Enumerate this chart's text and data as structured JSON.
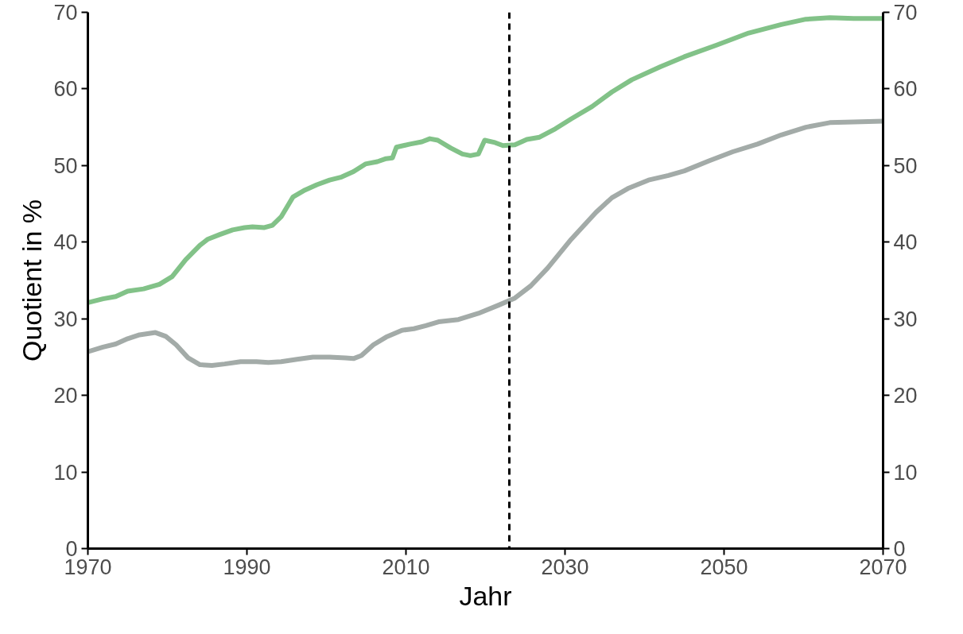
{
  "chart_data": {
    "type": "line",
    "xlabel": "Jahr",
    "ylabel": "Quotient in %",
    "xlim": [
      1970,
      2070
    ],
    "xticks": [
      1970,
      1990,
      2010,
      2030,
      2050,
      2070
    ],
    "ylim": [
      0,
      70
    ],
    "yticks": [
      0,
      10,
      20,
      30,
      40,
      50,
      60,
      70
    ],
    "y2lim": [
      0,
      70
    ],
    "y2ticks": [
      0,
      10,
      20,
      30,
      40,
      50,
      60,
      70
    ],
    "grid": false,
    "line_style": "solid",
    "marker": "none",
    "ref_lines": [
      {
        "axis": "x",
        "value": 2023,
        "color": "#000000",
        "line_style": "dashed"
      }
    ],
    "series": [
      {
        "color": "#82c288",
        "x": [
          1970,
          1971.9,
          1973.5,
          1975,
          1977,
          1979,
          1980.6,
          1982.3,
          1984.1,
          1985.1,
          1986.6,
          1988.2,
          1989.7,
          1990.7,
          1992.2,
          1993.2,
          1994.3,
          1995.8,
          1997.3,
          1998.8,
          2000.4,
          2001.9,
          2003.4,
          2004.9,
          2006.4,
          2007.5,
          2008.3,
          2008.8,
          2010.5,
          2012,
          2013,
          2014,
          2015.6,
          2017.1,
          2018.1,
          2019.1,
          2019.9,
          2021.2,
          2022.2,
          2023.7,
          2025.2,
          2026.8,
          2028.8,
          2030.8,
          2033.4,
          2035.9,
          2038.4,
          2042,
          2045,
          2049,
          2053.1,
          2057.2,
          2060.3,
          2063.3,
          2066.3,
          2070
        ],
        "values": [
          32.1,
          32.6,
          32.9,
          33.6,
          33.9,
          34.5,
          35.5,
          37.7,
          39.6,
          40.4,
          41.0,
          41.6,
          41.9,
          42.0,
          41.9,
          42.2,
          43.3,
          45.9,
          46.8,
          47.5,
          48.1,
          48.5,
          49.2,
          50.2,
          50.5,
          50.9,
          51.0,
          52.4,
          52.8,
          53.1,
          53.5,
          53.3,
          52.3,
          51.5,
          51.3,
          51.5,
          53.3,
          53.0,
          52.6,
          52.7,
          53.4,
          53.7,
          54.8,
          56.1,
          57.7,
          59.6,
          61.2,
          62.9,
          64.2,
          65.7,
          67.3,
          68.4,
          69.1,
          69.3,
          69.2,
          69.2
        ]
      },
      {
        "color": "#a3aba8",
        "x": [
          1970,
          1971.9,
          1973.5,
          1975,
          1976.5,
          1978.5,
          1979.8,
          1981.1,
          1982.6,
          1984.1,
          1985.6,
          1987.2,
          1989.2,
          1991.2,
          1992.7,
          1994.3,
          1996.3,
          1998.3,
          2000.4,
          2002.4,
          2003.4,
          2004.4,
          2005.9,
          2007.5,
          2009.5,
          2011,
          2012.5,
          2014.1,
          2016.6,
          2019.1,
          2021.7,
          2023.7,
          2025.7,
          2027.8,
          2030.8,
          2033.9,
          2035.9,
          2037.9,
          2040.5,
          2043,
          2045,
          2048.1,
          2051.1,
          2054.2,
          2057.2,
          2060.3,
          2063.3,
          2066.3,
          2070
        ],
        "values": [
          25.7,
          26.3,
          26.7,
          27.4,
          27.9,
          28.2,
          27.7,
          26.6,
          24.9,
          24.0,
          23.9,
          24.1,
          24.4,
          24.4,
          24.3,
          24.4,
          24.7,
          25.0,
          25.0,
          24.9,
          24.8,
          25.2,
          26.6,
          27.6,
          28.5,
          28.7,
          29.1,
          29.6,
          29.9,
          30.7,
          31.8,
          32.7,
          34.3,
          36.6,
          40.4,
          43.9,
          45.8,
          47.0,
          48.1,
          48.7,
          49.3,
          50.6,
          51.8,
          52.8,
          54.0,
          55.0,
          55.6,
          55.7,
          55.8
        ]
      }
    ]
  }
}
